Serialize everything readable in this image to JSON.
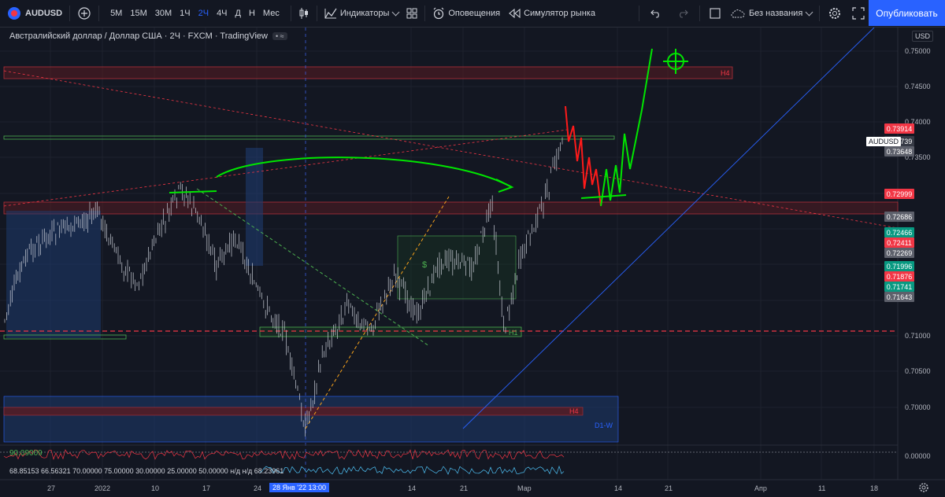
{
  "header": {
    "symbol": "AUDUSD",
    "timeframes": [
      "5М",
      "15М",
      "30М",
      "1Ч",
      "2Ч",
      "4Ч",
      "Д",
      "Н",
      "Мес"
    ],
    "active_timeframe": "2Ч",
    "indicators_label": "Индикаторы",
    "alerts_label": "Оповещения",
    "replay_label": "Симулятор рынка",
    "layout_name": "Без названия",
    "publish_label": "Опубликовать"
  },
  "legend": {
    "title": "Австралийский доллар / Доллар США · 2Ч · FXCM · TradingView"
  },
  "price_axis": {
    "currency": "USD",
    "ticks": [
      "0.75000",
      "0.74500",
      "0.74000",
      "0.73500",
      "0.71000",
      "0.70500",
      "0.70000",
      "0.00000"
    ],
    "labels": [
      {
        "text": "0.73914",
        "color": "#f23645"
      },
      {
        "text": "0.73739",
        "color": "#363a45"
      },
      {
        "text": "0.73648",
        "color": "#5d606b"
      },
      {
        "text": "0.72999",
        "color": "#f23645"
      },
      {
        "text": "0.72686",
        "color": "#5d606b"
      },
      {
        "text": "0.72466",
        "color": "#089981"
      },
      {
        "text": "0.72411",
        "color": "#f23645"
      },
      {
        "text": "0.72269",
        "color": "#5d606b"
      },
      {
        "text": "0.71996",
        "color": "#089981"
      },
      {
        "text": "0.71876",
        "color": "#f23645"
      },
      {
        "text": "0.71741",
        "color": "#089981"
      },
      {
        "text": "0.71643",
        "color": "#5d606b"
      }
    ],
    "symbol_tag": "AUDUSD"
  },
  "time_axis": {
    "labels": [
      "27",
      "2022",
      "10",
      "17",
      "24",
      "14",
      "21",
      "Мар",
      "14",
      "21",
      "Апр",
      "11",
      "18"
    ],
    "crosshair_date": "28 Янв '22  13:00"
  },
  "zones": {
    "h4_top": "H4",
    "h4_bottom": "H4",
    "h1": "H1",
    "d1w": "D1-W",
    "dollar": "$"
  },
  "indicator": {
    "value_label": "90.09009",
    "values_line": "68.85153  66.56321  70.00000  75.00000  30.00000  25.00000  50.00000  н/д  н/д  68.23961"
  }
}
